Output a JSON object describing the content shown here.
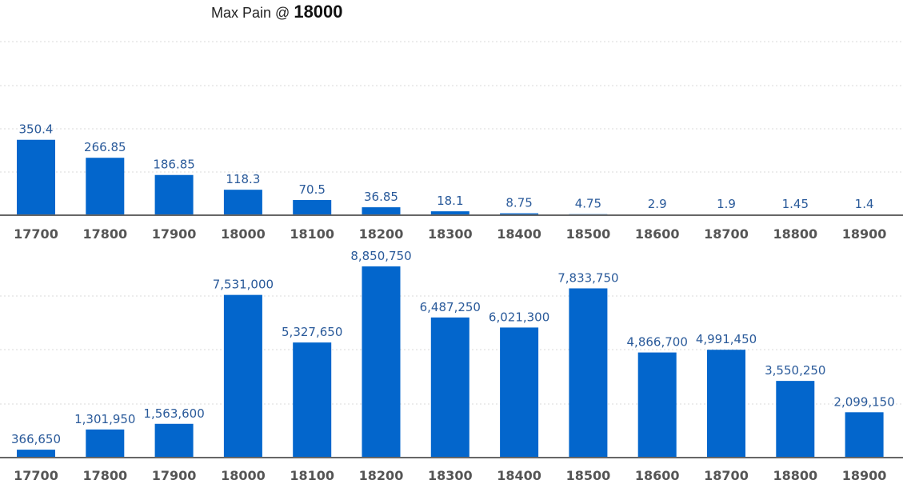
{
  "header": {
    "title_prefix": "Max Pain @",
    "title_value": "18000"
  },
  "chart_data": [
    {
      "type": "bar",
      "categories": [
        "17700",
        "17800",
        "17900",
        "18000",
        "18100",
        "18200",
        "18300",
        "18400",
        "18500",
        "18600",
        "18700",
        "18800",
        "18900"
      ],
      "values": [
        350.4,
        266.85,
        186.85,
        118.3,
        70.5,
        36.85,
        18.1,
        8.75,
        4.75,
        2.9,
        1.9,
        1.45,
        1.4
      ],
      "data_labels": [
        "350.4",
        "266.85",
        "186.85",
        "118.3",
        "70.5",
        "36.85",
        "18.1",
        "8.75",
        "4.75",
        "2.9",
        "1.9",
        "1.45",
        "1.4"
      ],
      "ylim": [
        0,
        1000
      ],
      "grid": true,
      "bar_color": "#0366cc"
    },
    {
      "type": "bar",
      "categories": [
        "17700",
        "17800",
        "17900",
        "18000",
        "18100",
        "18200",
        "18300",
        "18400",
        "18500",
        "18600",
        "18700",
        "18800",
        "18900"
      ],
      "values": [
        366650,
        1301950,
        1563600,
        7531000,
        5327650,
        8850750,
        6487250,
        6021300,
        7833750,
        4866700,
        4991450,
        3550250,
        2099150
      ],
      "data_labels": [
        "366,650",
        "1,301,950",
        "1,563,600",
        "7,531,000",
        "5,327,650",
        "8,850,750",
        "6,487,250",
        "6,021,300",
        "7,833,750",
        "4,866,700",
        "4,991,450",
        "3,550,250",
        "2,099,150"
      ],
      "ylim": [
        0,
        8850750
      ],
      "grid": true,
      "bar_color": "#0366cc"
    }
  ]
}
